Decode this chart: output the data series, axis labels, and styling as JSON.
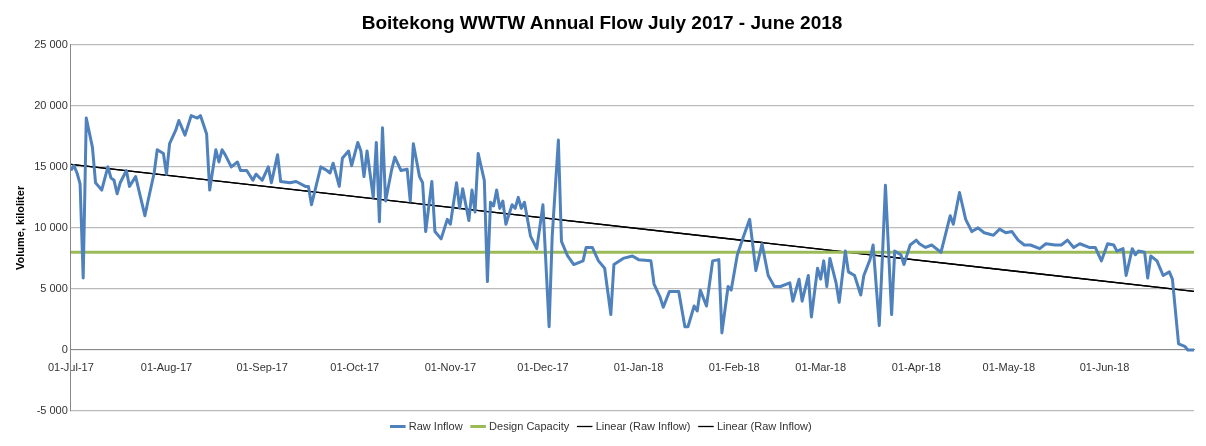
{
  "chart_data": {
    "type": "line",
    "title": "Boitekong WWTW Annual Flow July 2017 - June 2018",
    "ylabel": "Volume, kiloliter",
    "xlim": [
      "2017-07-01",
      "2018-06-30"
    ],
    "xticks": [
      {
        "value": "2017-07-01",
        "label": "01-Jul-17"
      },
      {
        "value": "2017-08-01",
        "label": "01-Aug-17"
      },
      {
        "value": "2017-09-01",
        "label": "01-Sep-17"
      },
      {
        "value": "2017-10-01",
        "label": "01-Oct-17"
      },
      {
        "value": "2017-11-01",
        "label": "01-Nov-17"
      },
      {
        "value": "2017-12-01",
        "label": "01-Dec-17"
      },
      {
        "value": "2018-01-01",
        "label": "01-Jan-18"
      },
      {
        "value": "2018-02-01",
        "label": "01-Feb-18"
      },
      {
        "value": "2018-03-01",
        "label": "01-Mar-18"
      },
      {
        "value": "2018-04-01",
        "label": "01-Apr-18"
      },
      {
        "value": "2018-05-01",
        "label": "01-May-18"
      },
      {
        "value": "2018-06-01",
        "label": "01-Jun-18"
      }
    ],
    "ylim": [
      -5000,
      25000
    ],
    "yticks": [
      {
        "value": -5000,
        "label": "-5 000"
      },
      0,
      {
        "value": 5000,
        "label": "5 000"
      },
      {
        "value": 10000,
        "label": "10 000"
      },
      {
        "value": 15000,
        "label": "15 000"
      },
      {
        "value": 20000,
        "label": "20 000"
      },
      {
        "value": 25000,
        "label": "25 000"
      }
    ],
    "grid": "y",
    "legend": "bottom",
    "marker": "none",
    "line_style": "solid",
    "series": [
      {
        "name": "Raw Inflow",
        "color": "#4f81bd",
        "x": [
          "2017-07-01",
          "2017-07-02",
          "2017-07-03",
          "2017-07-04",
          "2017-07-05",
          "2017-07-06",
          "2017-07-08",
          "2017-07-09",
          "2017-07-10",
          "2017-07-11",
          "2017-07-13",
          "2017-07-14",
          "2017-07-15",
          "2017-07-16",
          "2017-07-17",
          "2017-07-19",
          "2017-07-20",
          "2017-07-22",
          "2017-07-25",
          "2017-07-26",
          "2017-07-28",
          "2017-07-29",
          "2017-07-31",
          "2017-08-01",
          "2017-08-02",
          "2017-08-04",
          "2017-08-05",
          "2017-08-07",
          "2017-08-09",
          "2017-08-11",
          "2017-08-12",
          "2017-08-14",
          "2017-08-15",
          "2017-08-17",
          "2017-08-18",
          "2017-08-19",
          "2017-08-20",
          "2017-08-22",
          "2017-08-24",
          "2017-08-25",
          "2017-08-27",
          "2017-08-29",
          "2017-08-30",
          "2017-09-01",
          "2017-09-03",
          "2017-09-04",
          "2017-09-06",
          "2017-09-07",
          "2017-09-10",
          "2017-09-12",
          "2017-09-15",
          "2017-09-16",
          "2017-09-17",
          "2017-09-20",
          "2017-09-22",
          "2017-09-23",
          "2017-09-24",
          "2017-09-26",
          "2017-09-27",
          "2017-09-29",
          "2017-09-30",
          "2017-10-02",
          "2017-10-03",
          "2017-10-04",
          "2017-10-05",
          "2017-10-07",
          "2017-10-08",
          "2017-10-09",
          "2017-10-10",
          "2017-10-11",
          "2017-10-13",
          "2017-10-14",
          "2017-10-16",
          "2017-10-18",
          "2017-10-19",
          "2017-10-20",
          "2017-10-22",
          "2017-10-23",
          "2017-10-24",
          "2017-10-26",
          "2017-10-27",
          "2017-10-29",
          "2017-10-31",
          "2017-11-01",
          "2017-11-03",
          "2017-11-04",
          "2017-11-05",
          "2017-11-07",
          "2017-11-08",
          "2017-11-09",
          "2017-11-10",
          "2017-11-12",
          "2017-11-13",
          "2017-11-14",
          "2017-11-15",
          "2017-11-16",
          "2017-11-17",
          "2017-11-18",
          "2017-11-19",
          "2017-11-21",
          "2017-11-22",
          "2017-11-23",
          "2017-11-24",
          "2017-11-25",
          "2017-11-27",
          "2017-11-29",
          "2017-12-01",
          "2017-12-03",
          "2017-12-04",
          "2017-12-06",
          "2017-12-07",
          "2017-12-09",
          "2017-12-11",
          "2017-12-14",
          "2017-12-15",
          "2017-12-17",
          "2017-12-19",
          "2017-12-21",
          "2017-12-23",
          "2017-12-24",
          "2017-12-27",
          "2017-12-30",
          "2018-01-01",
          "2018-01-05",
          "2018-01-06",
          "2018-01-08",
          "2018-01-09",
          "2018-01-11",
          "2018-01-12",
          "2018-01-14",
          "2018-01-16",
          "2018-01-17",
          "2018-01-19",
          "2018-01-20",
          "2018-01-21",
          "2018-01-23",
          "2018-01-25",
          "2018-01-27",
          "2018-01-28",
          "2018-01-30",
          "2018-01-31",
          "2018-02-02",
          "2018-02-04",
          "2018-02-06",
          "2018-02-08",
          "2018-02-10",
          "2018-02-12",
          "2018-02-14",
          "2018-02-16",
          "2018-02-19",
          "2018-02-20",
          "2018-02-22",
          "2018-02-23",
          "2018-02-25",
          "2018-02-26",
          "2018-02-28",
          "2018-03-01",
          "2018-03-02",
          "2018-03-03",
          "2018-03-04",
          "2018-03-06",
          "2018-03-07",
          "2018-03-09",
          "2018-03-10",
          "2018-03-12",
          "2018-03-14",
          "2018-03-15",
          "2018-03-17",
          "2018-03-18",
          "2018-03-20",
          "2018-03-21",
          "2018-03-22",
          "2018-03-24",
          "2018-03-25",
          "2018-03-27",
          "2018-03-28",
          "2018-03-30",
          "2018-04-01",
          "2018-04-02",
          "2018-04-04",
          "2018-04-06",
          "2018-04-09",
          "2018-04-12",
          "2018-04-13",
          "2018-04-15",
          "2018-04-17",
          "2018-04-19",
          "2018-04-21",
          "2018-04-23",
          "2018-04-26",
          "2018-04-28",
          "2018-04-30",
          "2018-05-02",
          "2018-05-04",
          "2018-05-06",
          "2018-05-08",
          "2018-05-11",
          "2018-05-13",
          "2018-05-16",
          "2018-05-18",
          "2018-05-20",
          "2018-05-22",
          "2018-05-24",
          "2018-05-27",
          "2018-05-29",
          "2018-05-31",
          "2018-06-02",
          "2018-06-04",
          "2018-06-05",
          "2018-06-07",
          "2018-06-08",
          "2018-06-10",
          "2018-06-11",
          "2018-06-12",
          "2018-06-14",
          "2018-06-15",
          "2018-06-16",
          "2018-06-18",
          "2018-06-20",
          "2018-06-22",
          "2018-06-23",
          "2018-06-25",
          "2018-06-27",
          "2018-06-28",
          "2018-06-30"
        ],
        "values": [
          14700,
          15100,
          14500,
          13600,
          5900,
          19000,
          16600,
          13700,
          13400,
          13100,
          15000,
          14100,
          13900,
          12800,
          13700,
          14700,
          13400,
          14200,
          11000,
          12200,
          14500,
          16400,
          16100,
          14400,
          16900,
          18000,
          18800,
          17600,
          19200,
          19000,
          19200,
          17700,
          13100,
          16400,
          15400,
          16400,
          16000,
          15000,
          15400,
          14700,
          14700,
          13900,
          14400,
          13900,
          15000,
          13700,
          16000,
          13800,
          13700,
          13800,
          13400,
          13400,
          11900,
          15000,
          14700,
          14500,
          15300,
          13400,
          15700,
          16300,
          15100,
          17000,
          16300,
          14200,
          16300,
          12500,
          17000,
          10500,
          18200,
          12200,
          14800,
          15800,
          14700,
          14800,
          12200,
          16900,
          14200,
          13700,
          9700,
          13800,
          9700,
          9100,
          10700,
          10300,
          13700,
          11600,
          13200,
          10600,
          13100,
          11300,
          16100,
          13900,
          5600,
          12100,
          11800,
          13100,
          11600,
          12200,
          10300,
          11900,
          11600,
          12500,
          11600,
          12100,
          9300,
          8300,
          11900,
          1900,
          9300,
          17200,
          8900,
          7700,
          7000,
          7300,
          8400,
          8400,
          7300,
          6700,
          2900,
          7000,
          7500,
          7700,
          7400,
          7300,
          5400,
          4300,
          3500,
          4800,
          4800,
          4800,
          1900,
          1900,
          3600,
          3200,
          4900,
          3600,
          7300,
          7400,
          1400,
          5200,
          4900,
          7800,
          9300,
          10700,
          6500,
          8700,
          6100,
          5200,
          5200,
          5500,
          4000,
          5800,
          4000,
          6100,
          2700,
          6700,
          5800,
          7300,
          5200,
          7500,
          5500,
          3900,
          8100,
          6400,
          6100,
          4500,
          6100,
          7400,
          8600,
          2000,
          7500,
          13500,
          2900,
          8100,
          7800,
          7000,
          8600,
          9000,
          8700,
          8400,
          8600,
          8000,
          11000,
          10300,
          12900,
          10700,
          9700,
          10000,
          9600,
          9400,
          9900,
          9600,
          9700,
          9000,
          8600,
          8600,
          8300,
          8700,
          8600,
          8600,
          9000,
          8400,
          8700,
          8400,
          8400,
          7300,
          8700,
          8600,
          8100,
          8300,
          6100,
          8300,
          7800,
          8100,
          8000,
          5900,
          7700,
          7300,
          6100,
          6400,
          5800,
          500,
          300,
          0,
          0
        ]
      },
      {
        "name": "Design Capacity",
        "color": "#9bbb59",
        "x": [
          "2017-07-01",
          "2018-06-30"
        ],
        "values": [
          8000,
          8000
        ]
      },
      {
        "name": "Linear (Raw Inflow)",
        "color": "#000000",
        "x": [
          "2017-07-01",
          "2018-06-30"
        ],
        "values": [
          15200,
          4800
        ]
      },
      {
        "name": "Linear (Raw Inflow)",
        "color": "#000000",
        "x": [
          "2017-07-01",
          "2018-06-30"
        ],
        "values": [
          15200,
          4800
        ]
      }
    ]
  }
}
